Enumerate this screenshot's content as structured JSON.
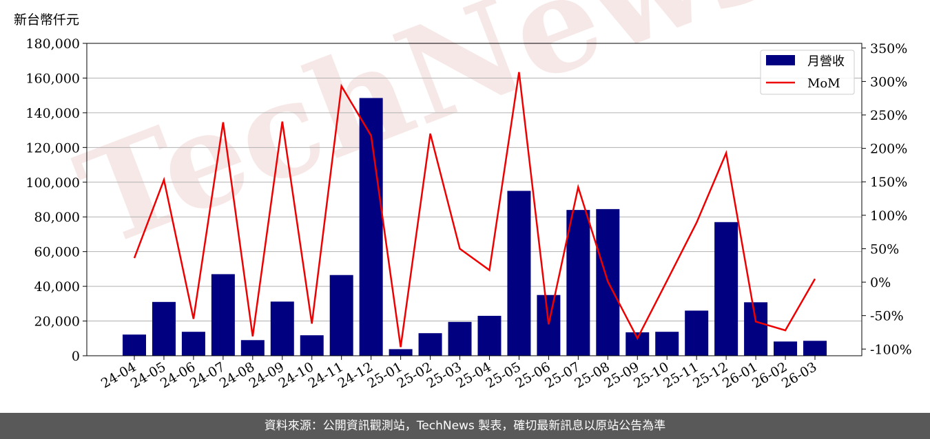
{
  "chart_data": {
    "type": "bar+line",
    "unit_label": "新台幣仟元",
    "categories": [
      "24-04",
      "24-05",
      "24-06",
      "24-07",
      "24-08",
      "24-09",
      "24-10",
      "24-11",
      "24-12",
      "25-01",
      "25-02",
      "25-03",
      "25-04",
      "25-05",
      "25-06",
      "25-07",
      "25-08",
      "25-09",
      "25-10",
      "25-11",
      "25-12",
      "26-01",
      "26-02",
      "26-03"
    ],
    "series": [
      {
        "name": "月營收",
        "type": "bar",
        "axis": "left",
        "color": "#000080",
        "values": [
          12200,
          31000,
          13800,
          47000,
          9000,
          31200,
          11800,
          46500,
          148500,
          3800,
          13000,
          19500,
          23000,
          95000,
          35000,
          84000,
          84500,
          13500,
          13800,
          26000,
          77000,
          30800,
          8200,
          8600
        ]
      },
      {
        "name": "MoM",
        "type": "line",
        "axis": "right",
        "color": "#ee0000",
        "values": [
          36,
          153,
          -55,
          239,
          -81,
          240,
          -62,
          293,
          219,
          -97,
          222,
          50,
          18,
          314,
          -63,
          142,
          1,
          -84,
          2,
          89,
          193,
          -59,
          -72,
          5
        ]
      }
    ],
    "left_axis": {
      "min": 0,
      "max": 180000,
      "ticks": [
        0,
        20000,
        40000,
        60000,
        80000,
        100000,
        120000,
        140000,
        160000,
        180000
      ],
      "tick_labels": [
        "0",
        "20,000",
        "40,000",
        "60,000",
        "80,000",
        "100,000",
        "120,000",
        "140,000",
        "160,000",
        "180,000"
      ]
    },
    "right_axis": {
      "min": -110,
      "max": 357,
      "ticks": [
        -100,
        -50,
        0,
        50,
        100,
        150,
        200,
        250,
        300,
        350
      ],
      "tick_labels": [
        "-100%",
        "-50%",
        "0%",
        "50%",
        "100%",
        "150%",
        "200%",
        "250%",
        "300%",
        "350%"
      ]
    },
    "grid": "horizontal",
    "legend_position": "top-right",
    "watermark": "TechNews"
  },
  "footer": {
    "text": "資料來源：公開資訊觀測站，TechNews 製表，確切最新訊息以原站公告為準"
  }
}
